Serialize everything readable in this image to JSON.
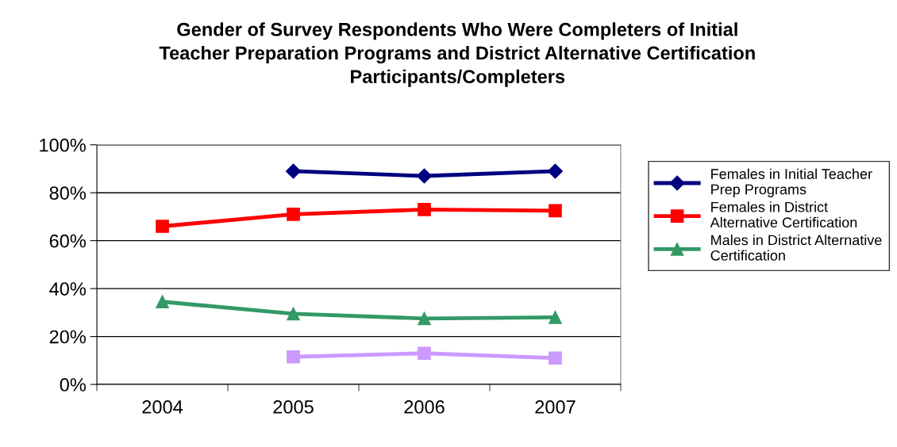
{
  "chart_data": {
    "type": "line",
    "title": "Gender of Survey Respondents Who Were Completers of Initial\nTeacher Preparation Programs and District Alternative Certification\nParticipants/Completers",
    "categories": [
      "2004",
      "2005",
      "2006",
      "2007"
    ],
    "series": [
      {
        "name": "Females in Initial Teacher\nPrep Programs",
        "color": "#000080",
        "marker": "diamond",
        "values": [
          null,
          89,
          87,
          89
        ]
      },
      {
        "name": "Females in District\nAlternative Certification",
        "color": "#ff0000",
        "marker": "square",
        "values": [
          66,
          71,
          73,
          72.5
        ]
      },
      {
        "name": "Males in District Alternative\nCertification",
        "color": "#339966",
        "marker": "triangle",
        "values": [
          34.5,
          29.5,
          27.5,
          28
        ]
      },
      {
        "color": "#cc99ff",
        "marker": "square",
        "values": [
          null,
          11.5,
          13,
          11
        ]
      }
    ],
    "ylim": [
      0,
      100
    ],
    "yticks": [
      {
        "value": 0,
        "label": "0%"
      },
      {
        "value": 20,
        "label": "20%"
      },
      {
        "value": 40,
        "label": "40%"
      },
      {
        "value": 60,
        "label": "60%"
      },
      {
        "value": 80,
        "label": "80%"
      },
      {
        "value": 100,
        "label": "100%"
      }
    ],
    "grid": "y",
    "legend": "right"
  }
}
